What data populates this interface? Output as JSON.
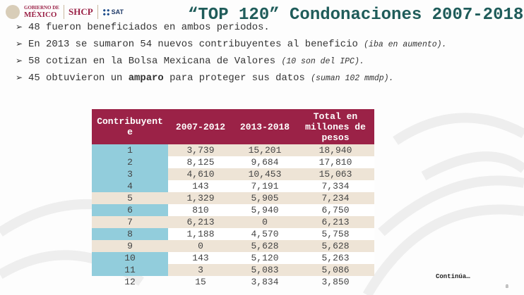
{
  "header": {
    "logo_gob": [
      "GOBIERNO DE",
      "MÉXICO"
    ],
    "logo_shcp": "SHCP",
    "logo_sat": "SAT",
    "title": "“TOP 120” Condonaciones 2007-2018"
  },
  "bullets": [
    {
      "text": "48 fueron beneficiados en ambos periodos.",
      "bold": "",
      "after": "",
      "note": ""
    },
    {
      "text": "En 2013 se sumaron 54 nuevos contribuyentes al beneficio ",
      "bold": "",
      "after": "",
      "note": "(iba en aumento)."
    },
    {
      "text": "58 cotizan en la Bolsa Mexicana de Valores ",
      "bold": "",
      "after": "",
      "note": "(10 son del IPC)."
    },
    {
      "text": "45 obtuvieron un ",
      "bold": "amparo",
      "after": " para proteger sus datos ",
      "note": "(suman 102 mmdp)."
    }
  ],
  "table": {
    "headers": [
      "Contribuyent e",
      "2007-2012",
      "2013-2018",
      "Total en millones de pesos"
    ],
    "rows": [
      [
        "1",
        "3,739",
        "15,201",
        "18,940"
      ],
      [
        "2",
        "8,125",
        "9,684",
        "17,810"
      ],
      [
        "3",
        "4,610",
        "10,453",
        "15,063"
      ],
      [
        "4",
        "143",
        "7,191",
        "7,334"
      ],
      [
        "5",
        "1,329",
        "5,905",
        "7,234"
      ],
      [
        "6",
        "810",
        "5,940",
        "6,750"
      ],
      [
        "7",
        "6,213",
        "0",
        "6,213"
      ],
      [
        "8",
        "1,188",
        "4,570",
        "5,758"
      ],
      [
        "9",
        "0",
        "5,628",
        "5,628"
      ],
      [
        "10",
        "143",
        "5,120",
        "5,263"
      ],
      [
        "11",
        "3",
        "5,083",
        "5,086"
      ],
      [
        "12",
        "15",
        "3,834",
        "3,850"
      ]
    ]
  },
  "footer": {
    "continua": "Continúa…",
    "page": "8"
  },
  "colors": {
    "title": "#1f5c5a",
    "header_bg": "#9b2247",
    "id_col": "#92cddc",
    "band": "#eee4d6"
  }
}
